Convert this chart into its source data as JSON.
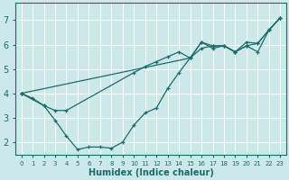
{
  "xlabel": "Humidex (Indice chaleur)",
  "background_color": "#cde8e8",
  "grid_color": "#ffffff",
  "line_color": "#1a6b6b",
  "xlim": [
    -0.5,
    23.5
  ],
  "ylim": [
    1.5,
    7.7
  ],
  "xticks": [
    0,
    1,
    2,
    3,
    4,
    5,
    6,
    7,
    8,
    9,
    10,
    11,
    12,
    13,
    14,
    15,
    16,
    17,
    18,
    19,
    20,
    21,
    22,
    23
  ],
  "yticks": [
    2,
    3,
    4,
    5,
    6,
    7
  ],
  "series": [
    {
      "x": [
        0,
        1,
        2,
        3,
        4,
        5,
        6,
        7,
        8,
        9,
        10,
        11,
        12,
        13,
        14,
        15,
        16,
        17,
        18,
        19,
        20,
        21,
        22,
        23
      ],
      "y": [
        4.0,
        3.8,
        3.5,
        2.9,
        2.25,
        1.7,
        1.8,
        1.8,
        1.75,
        2.0,
        2.7,
        3.2,
        3.4,
        4.2,
        4.85,
        5.45,
        6.1,
        5.85,
        5.95,
        5.7,
        6.1,
        6.05,
        6.6,
        7.1
      ]
    },
    {
      "x": [
        0,
        2,
        3,
        4,
        10,
        11,
        12,
        13,
        14,
        15,
        16,
        17,
        18,
        19,
        20,
        21,
        22,
        23
      ],
      "y": [
        4.0,
        3.5,
        3.3,
        3.3,
        4.85,
        5.1,
        5.3,
        5.5,
        5.7,
        5.45,
        6.1,
        5.95,
        5.95,
        5.7,
        5.95,
        6.05,
        6.6,
        7.1
      ]
    },
    {
      "x": [
        0,
        15,
        16,
        17,
        18,
        19,
        20,
        21,
        22,
        23
      ],
      "y": [
        4.0,
        5.45,
        5.85,
        5.95,
        5.95,
        5.7,
        5.95,
        5.7,
        6.6,
        7.1
      ]
    }
  ]
}
